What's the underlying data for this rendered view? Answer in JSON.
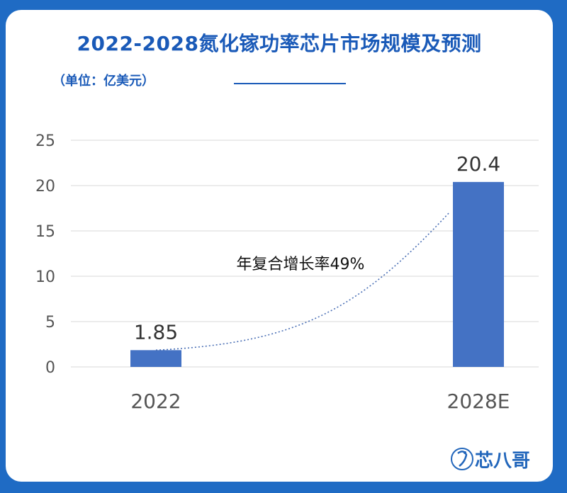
{
  "title": "2022-2028氮化镓功率芯片市场规模及预测",
  "unit": "（单位：亿美元）",
  "annotation": "年复合增长率49%",
  "brand": "芯八哥",
  "colors": {
    "background": "#1f6bc4",
    "title": "#1a5ab8",
    "bar": "#4472c4",
    "trend": "#4a6fb5"
  },
  "chart_data": {
    "type": "bar",
    "categories": [
      "2022",
      "2028E"
    ],
    "values": [
      1.85,
      20.4
    ],
    "data_labels": [
      "1.85",
      "20.4"
    ],
    "ylim": [
      0,
      25
    ],
    "yticks": [
      0,
      5,
      10,
      15,
      20,
      25
    ],
    "grid": true,
    "trendline": "dotted",
    "title": "2022-2028氮化镓功率芯片市场规模及预测",
    "ylabel": "（单位：亿美元）"
  }
}
